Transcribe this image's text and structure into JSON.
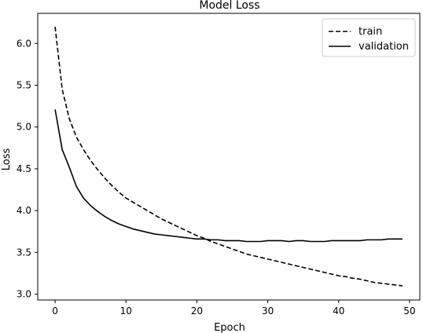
{
  "chart_data": {
    "type": "line",
    "title": "Model Loss",
    "xlabel": "Epoch",
    "ylabel": "Loss",
    "xlim": [
      -2.45,
      51.45
    ],
    "ylim": [
      2.93,
      6.36
    ],
    "xticks": [
      0,
      10,
      20,
      30,
      40,
      50
    ],
    "yticks": [
      3.0,
      3.5,
      4.0,
      4.5,
      5.0,
      5.5,
      6.0
    ],
    "ytick_labels": [
      "3.0",
      "3.5",
      "4.0",
      "4.5",
      "5.0",
      "5.5",
      "6.0"
    ],
    "legend_position": "top-right",
    "grid": false,
    "x": [
      0,
      1,
      2,
      3,
      4,
      5,
      6,
      7,
      8,
      9,
      10,
      11,
      12,
      13,
      14,
      15,
      16,
      17,
      18,
      19,
      20,
      21,
      22,
      23,
      24,
      25,
      26,
      27,
      28,
      29,
      30,
      31,
      32,
      33,
      34,
      35,
      36,
      37,
      38,
      39,
      40,
      41,
      42,
      43,
      44,
      45,
      46,
      47,
      48,
      49
    ],
    "series": [
      {
        "name": "train",
        "style": "dashed",
        "color": "#000000",
        "values": [
          6.2,
          5.45,
          5.1,
          4.88,
          4.73,
          4.6,
          4.49,
          4.39,
          4.3,
          4.22,
          4.15,
          4.1,
          4.05,
          4.0,
          3.95,
          3.9,
          3.86,
          3.82,
          3.78,
          3.74,
          3.7,
          3.67,
          3.63,
          3.6,
          3.57,
          3.54,
          3.51,
          3.48,
          3.46,
          3.44,
          3.42,
          3.4,
          3.38,
          3.36,
          3.34,
          3.32,
          3.3,
          3.28,
          3.26,
          3.24,
          3.22,
          3.21,
          3.19,
          3.18,
          3.16,
          3.14,
          3.13,
          3.12,
          3.11,
          3.1
        ]
      },
      {
        "name": "validation",
        "style": "solid",
        "color": "#000000",
        "values": [
          5.21,
          4.73,
          4.52,
          4.29,
          4.15,
          4.06,
          3.99,
          3.93,
          3.88,
          3.84,
          3.81,
          3.78,
          3.76,
          3.74,
          3.72,
          3.71,
          3.7,
          3.69,
          3.68,
          3.67,
          3.66,
          3.66,
          3.65,
          3.65,
          3.64,
          3.64,
          3.64,
          3.63,
          3.63,
          3.63,
          3.64,
          3.64,
          3.64,
          3.63,
          3.64,
          3.64,
          3.63,
          3.63,
          3.63,
          3.64,
          3.64,
          3.64,
          3.64,
          3.64,
          3.65,
          3.65,
          3.65,
          3.66,
          3.66,
          3.66
        ]
      }
    ]
  }
}
